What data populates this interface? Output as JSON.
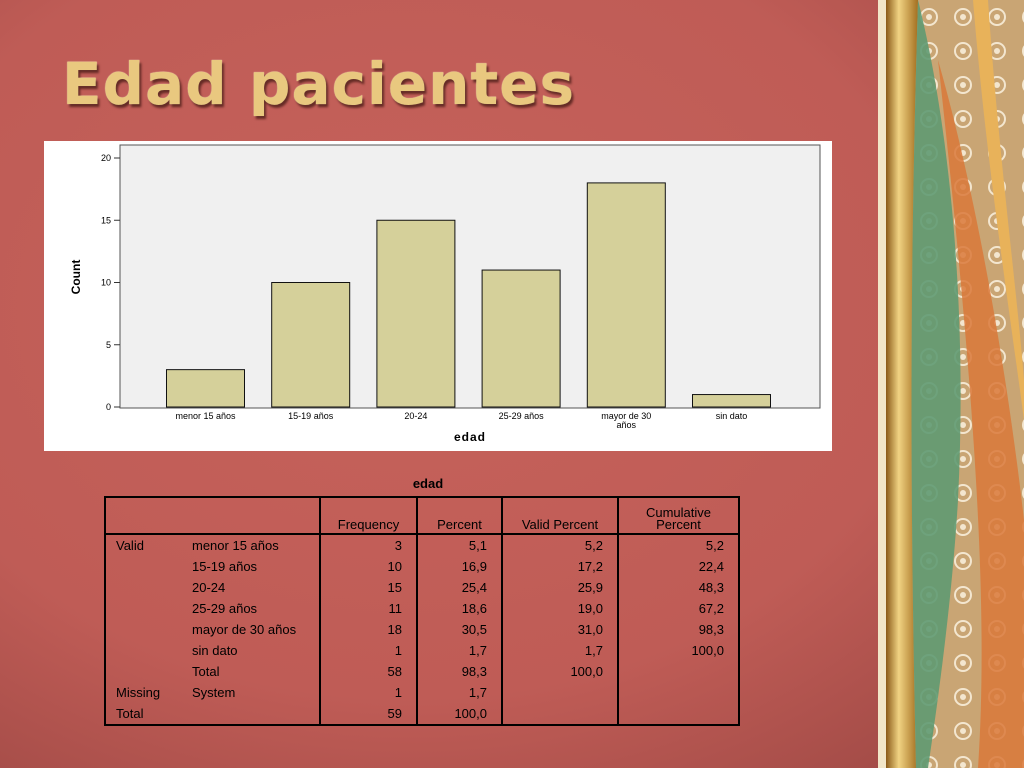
{
  "slide": {
    "title": "Edad pacientes"
  },
  "chart_data": {
    "type": "bar",
    "categories": [
      "menor 15 años",
      "15-19 años",
      "20-24",
      "25-29 años",
      "mayor de 30 años",
      "sin dato"
    ],
    "category_lines": [
      [
        "menor 15 años"
      ],
      [
        "15-19 años"
      ],
      [
        "20-24"
      ],
      [
        "25-29 años"
      ],
      [
        "mayor de 30",
        "años"
      ],
      [
        "sin dato"
      ]
    ],
    "values": [
      3,
      10,
      15,
      11,
      18,
      1
    ],
    "xlabel": "edad",
    "ylabel": "Count",
    "ylim": [
      0,
      20
    ],
    "yticks": [
      0,
      5,
      10,
      15,
      20
    ],
    "grid": false,
    "colors": {
      "bar": "#d5d09a",
      "plot_bg": "#f0f0f0"
    }
  },
  "table": {
    "caption": "edad",
    "headers": {
      "frequency": "Frequency",
      "percent": "Percent",
      "valid_percent": "Valid Percent",
      "cumulative_percent": [
        "Cumulative",
        "Percent"
      ]
    },
    "rows": [
      {
        "group": "Valid",
        "label": "menor 15 años",
        "frequency": "3",
        "percent": "5,1",
        "valid_percent": "5,2",
        "cumulative": "5,2"
      },
      {
        "group": "",
        "label": "15-19 años",
        "frequency": "10",
        "percent": "16,9",
        "valid_percent": "17,2",
        "cumulative": "22,4"
      },
      {
        "group": "",
        "label": "20-24",
        "frequency": "15",
        "percent": "25,4",
        "valid_percent": "25,9",
        "cumulative": "48,3"
      },
      {
        "group": "",
        "label": "25-29 años",
        "frequency": "11",
        "percent": "18,6",
        "valid_percent": "19,0",
        "cumulative": "67,2"
      },
      {
        "group": "",
        "label": "mayor de 30 años",
        "frequency": "18",
        "percent": "30,5",
        "valid_percent": "31,0",
        "cumulative": "98,3"
      },
      {
        "group": "",
        "label": "sin dato",
        "frequency": "1",
        "percent": "1,7",
        "valid_percent": "1,7",
        "cumulative": "100,0"
      },
      {
        "group": "",
        "label": "Total",
        "frequency": "58",
        "percent": "98,3",
        "valid_percent": "100,0",
        "cumulative": ""
      },
      {
        "group": "Missing",
        "label": "System",
        "frequency": "1",
        "percent": "1,7",
        "valid_percent": "",
        "cumulative": ""
      },
      {
        "group": "Total",
        "label": "",
        "frequency": "59",
        "percent": "100,0",
        "valid_percent": "",
        "cumulative": ""
      }
    ]
  }
}
